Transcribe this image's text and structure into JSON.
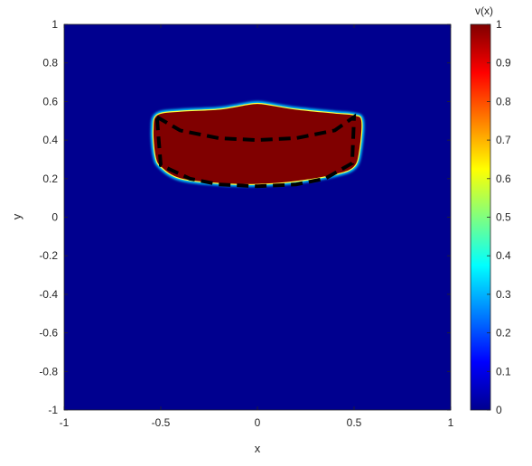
{
  "chart_data": {
    "type": "heatmap",
    "xlabel": "x",
    "ylabel": "y",
    "xlim": [
      -1,
      1
    ],
    "ylim": [
      -1,
      1
    ],
    "xticks": [
      "-1",
      "-0.5",
      "0",
      "0.5",
      "1"
    ],
    "yticks": [
      "1",
      "0.8",
      "0.6",
      "0.4",
      "0.2",
      "0",
      "-0.2",
      "-0.4",
      "-0.6",
      "-0.8",
      "-1"
    ],
    "colorbar": {
      "label": "v(x)",
      "range": [
        0,
        1
      ],
      "ticks": [
        "1",
        "0.9",
        "0.8",
        "0.7",
        "0.6",
        "0.5",
        "0.4",
        "0.3",
        "0.2",
        "0.1",
        "0"
      ],
      "colormap": "jet"
    },
    "background_value": 0,
    "region": {
      "value": 1,
      "boundary": [
        [
          -0.52,
          0.53
        ],
        [
          -0.4,
          0.55
        ],
        [
          -0.2,
          0.56
        ],
        [
          -0.05,
          0.585
        ],
        [
          0.0,
          0.59
        ],
        [
          0.05,
          0.585
        ],
        [
          0.2,
          0.56
        ],
        [
          0.4,
          0.54
        ],
        [
          0.5,
          0.53
        ],
        [
          0.54,
          0.5
        ],
        [
          0.53,
          0.35
        ],
        [
          0.5,
          0.26
        ],
        [
          0.4,
          0.22
        ],
        [
          0.2,
          0.185
        ],
        [
          0.0,
          0.17
        ],
        [
          -0.2,
          0.175
        ],
        [
          -0.4,
          0.2
        ],
        [
          -0.5,
          0.26
        ],
        [
          -0.53,
          0.32
        ],
        [
          -0.54,
          0.45
        ]
      ]
    },
    "dashed_curve": [
      [
        -0.52,
        0.52
      ],
      [
        -0.4,
        0.45
      ],
      [
        -0.2,
        0.41
      ],
      [
        0.0,
        0.4
      ],
      [
        0.2,
        0.41
      ],
      [
        0.4,
        0.45
      ],
      [
        0.5,
        0.52
      ],
      [
        0.49,
        0.28
      ],
      [
        0.35,
        0.2
      ],
      [
        0.2,
        0.17
      ],
      [
        0.0,
        0.16
      ],
      [
        -0.2,
        0.17
      ],
      [
        -0.35,
        0.2
      ],
      [
        -0.5,
        0.27
      ],
      [
        -0.52,
        0.52
      ]
    ]
  },
  "colors": {
    "background": "#00008f",
    "region": "#800000",
    "edge": "#00c8ff",
    "dash": "#000000"
  }
}
